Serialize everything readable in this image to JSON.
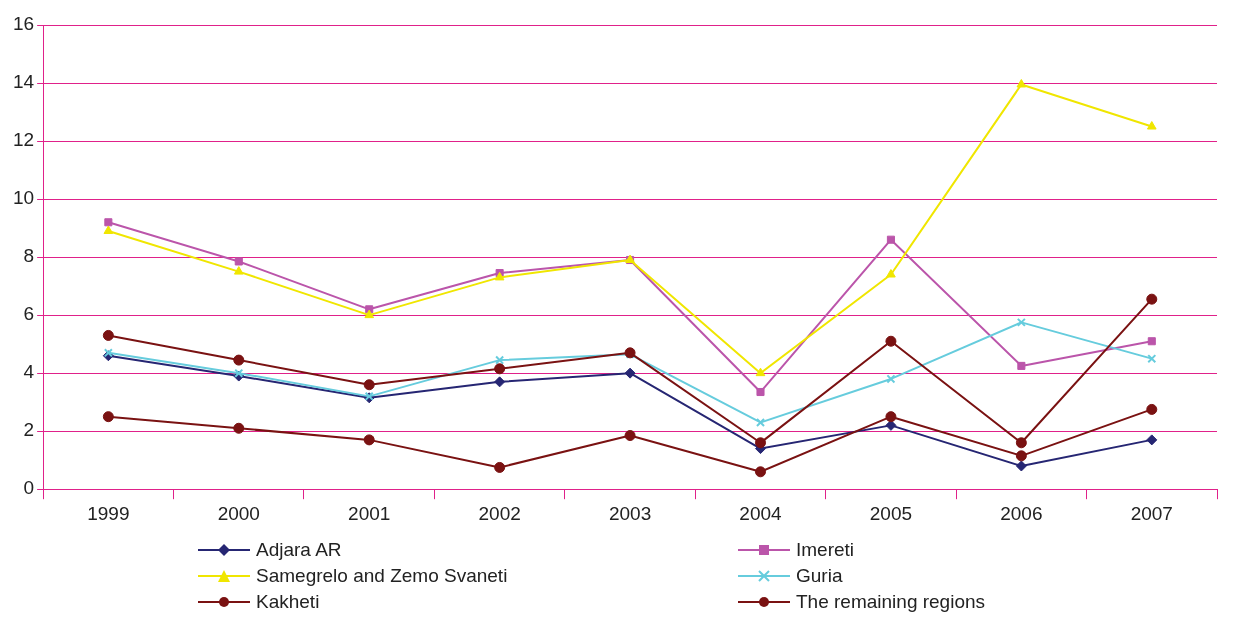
{
  "chart_data": {
    "type": "line",
    "categories": [
      "1999",
      "2000",
      "2001",
      "2002",
      "2003",
      "2004",
      "2005",
      "2006",
      "2007"
    ],
    "series": [
      {
        "name": "Adjara AR",
        "color": "#262673",
        "marker": "diamond",
        "values": [
          4.6,
          3.9,
          3.15,
          3.7,
          4.0,
          1.4,
          2.2,
          0.8,
          1.7
        ]
      },
      {
        "name": "Imereti",
        "color": "#bb55aa",
        "marker": "square",
        "values": [
          9.2,
          7.85,
          6.2,
          7.45,
          7.9,
          3.35,
          8.6,
          4.25,
          5.1
        ]
      },
      {
        "name": "Samegrelo and Zemo Svaneti",
        "color": "#f0e600",
        "marker": "triangle",
        "values": [
          8.9,
          7.5,
          6.0,
          7.3,
          7.9,
          4.0,
          7.4,
          13.95,
          12.5
        ]
      },
      {
        "name": "Guria",
        "color": "#66ccdd",
        "marker": "cross",
        "values": [
          4.7,
          4.0,
          3.2,
          4.45,
          4.65,
          2.3,
          3.8,
          5.75,
          4.5
        ]
      },
      {
        "name": "Kakheti",
        "color": "#7a1212",
        "marker": "circle",
        "values": [
          2.5,
          2.1,
          1.7,
          0.75,
          1.85,
          0.6,
          2.5,
          1.15,
          2.75
        ]
      },
      {
        "name": "The remaining regions",
        "color": "#7a1212",
        "marker": "circle",
        "values": [
          5.3,
          4.45,
          3.6,
          4.15,
          4.7,
          1.6,
          5.1,
          1.6,
          6.55
        ]
      }
    ],
    "ylim": [
      0,
      16
    ],
    "yticks": [
      0,
      2,
      4,
      6,
      8,
      10,
      12,
      14,
      16
    ],
    "grid": "y",
    "legend": "bottom"
  }
}
